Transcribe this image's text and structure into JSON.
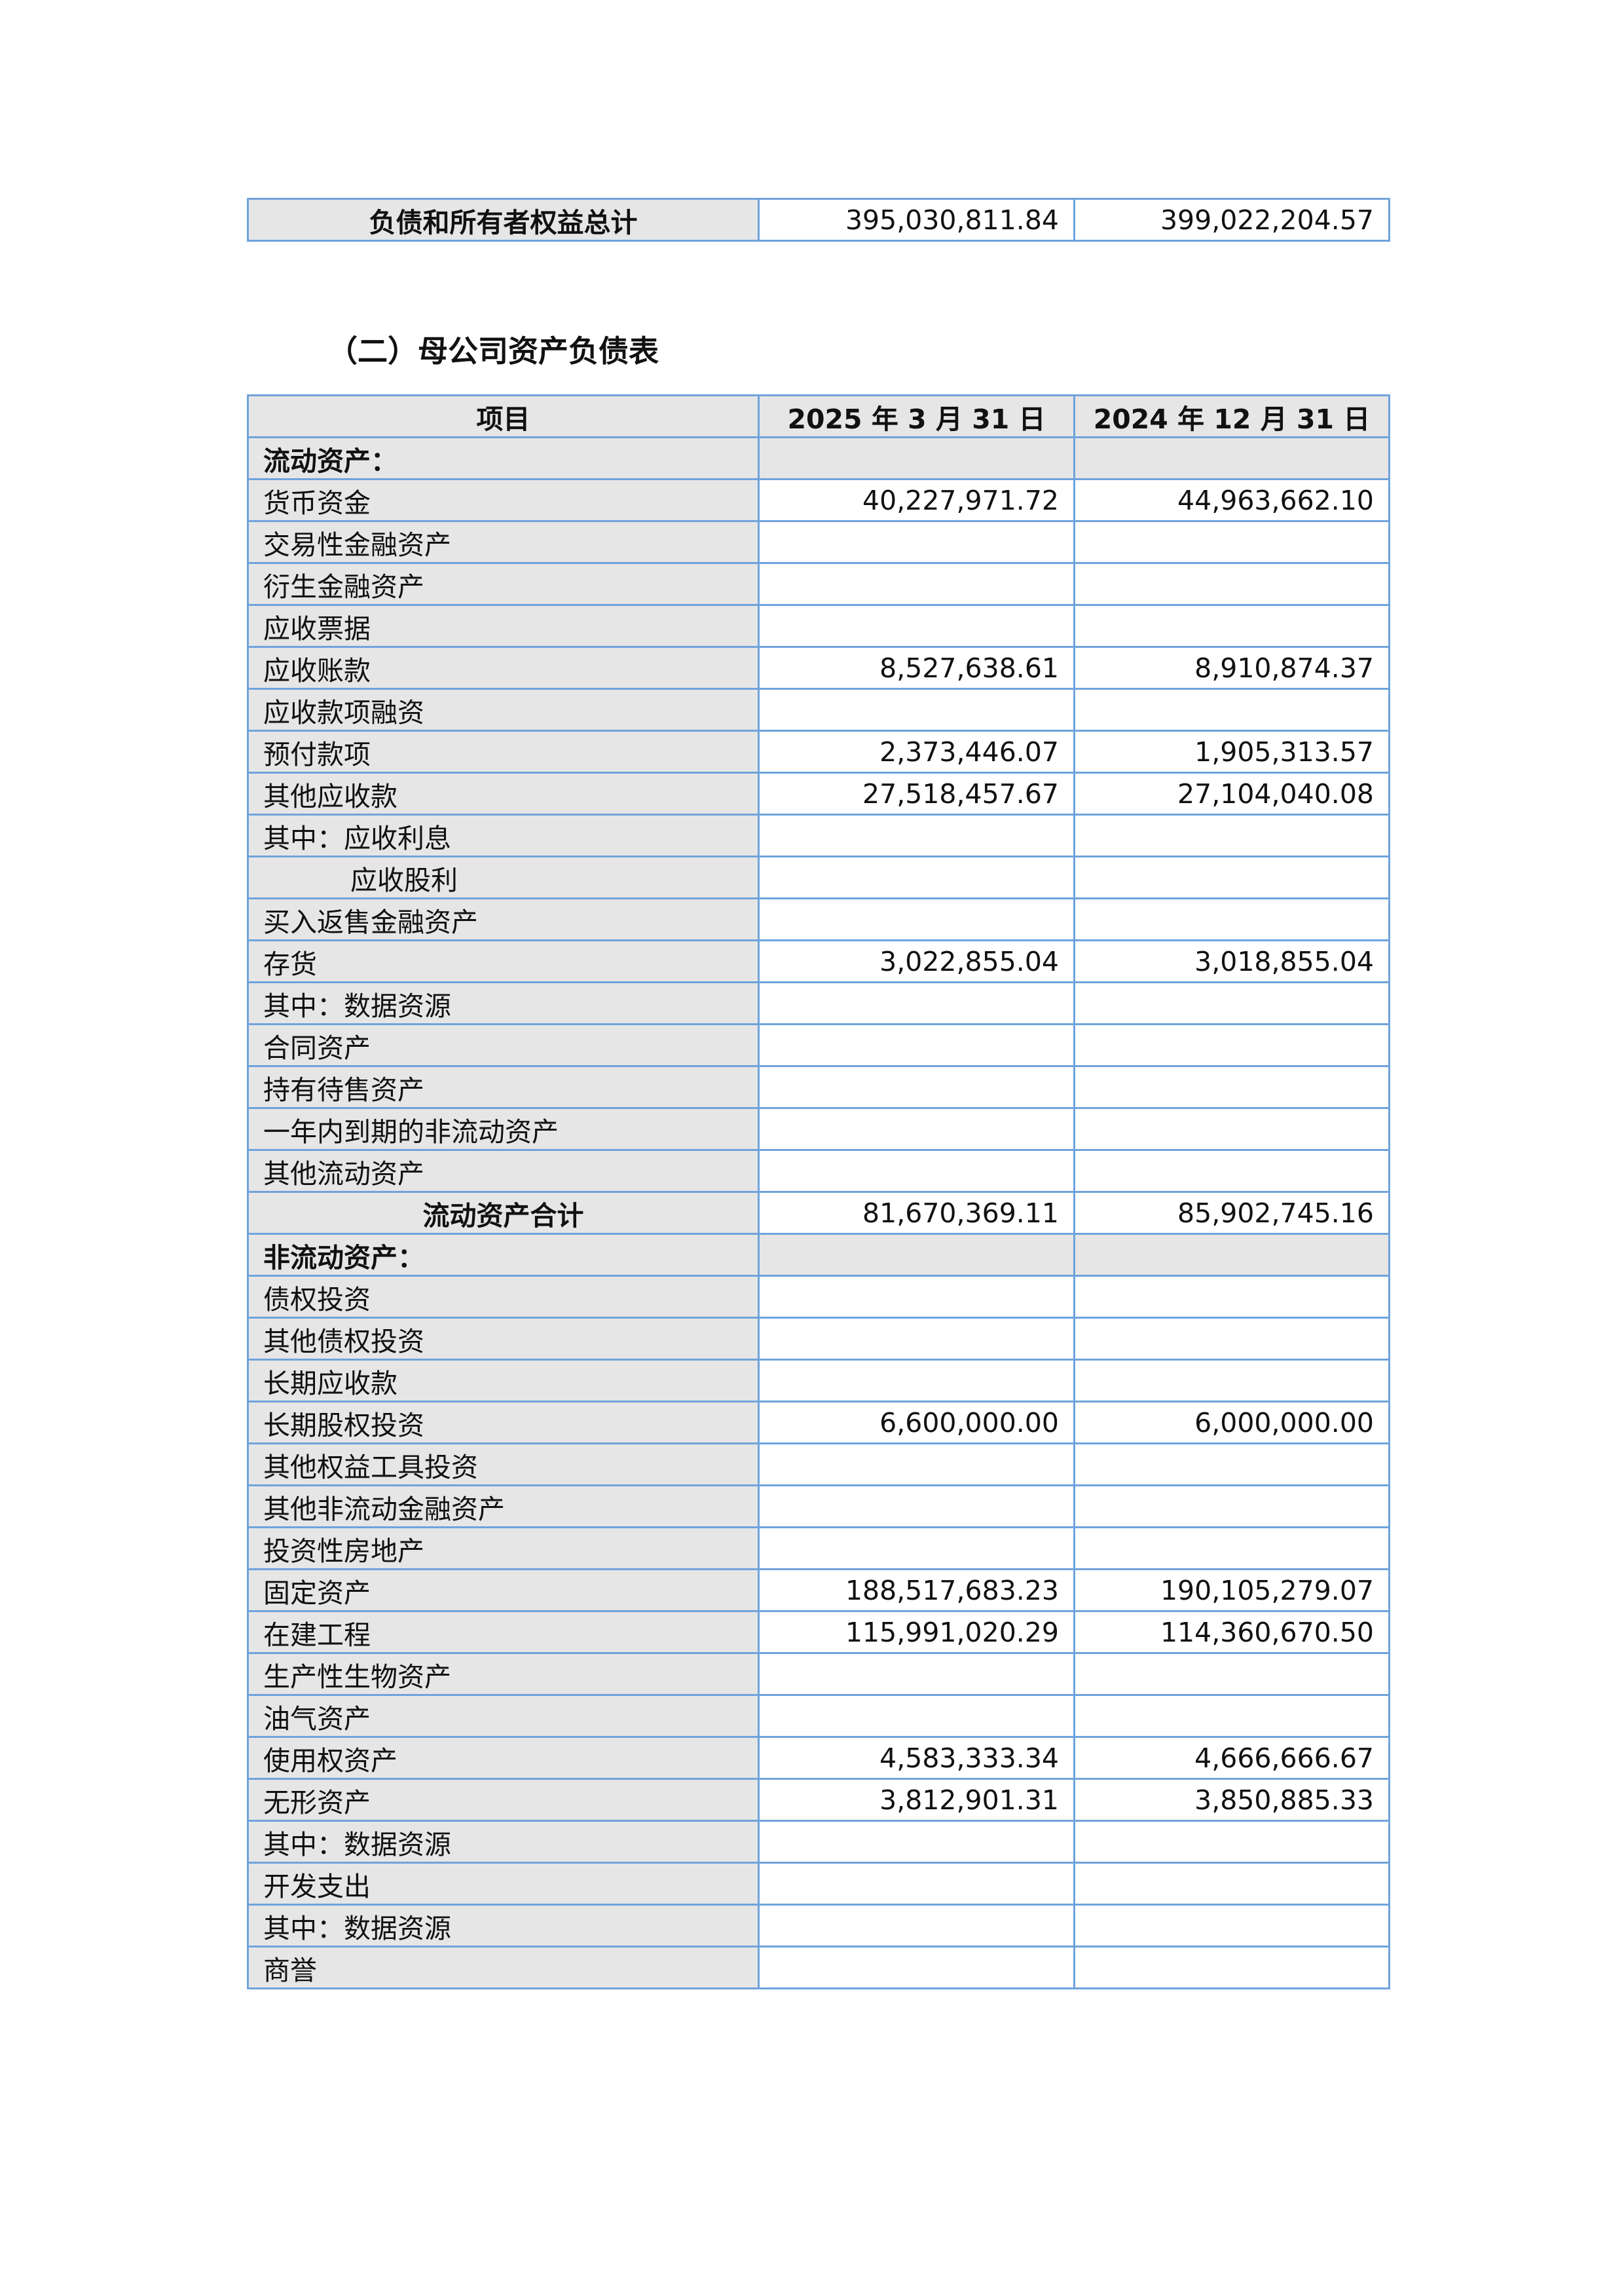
{
  "top_table": {
    "label": "负债和所有者权益总计",
    "v2025": "395,030,811.84",
    "v2024": "399,022,204.57"
  },
  "section_title": "（二）母公司资产负债表",
  "table": {
    "headers": [
      "项目",
      "2025 年 3 月 31 日",
      "2024 年 12 月 31 日"
    ],
    "rows": [
      {
        "label": "流动资产：",
        "v2025": "",
        "v2024": "",
        "style": "section"
      },
      {
        "label": "货币资金",
        "v2025": "40,227,971.72",
        "v2024": "44,963,662.10"
      },
      {
        "label": "交易性金融资产",
        "v2025": "",
        "v2024": ""
      },
      {
        "label": "衍生金融资产",
        "v2025": "",
        "v2024": ""
      },
      {
        "label": "应收票据",
        "v2025": "",
        "v2024": ""
      },
      {
        "label": "应收账款",
        "v2025": "8,527,638.61",
        "v2024": "8,910,874.37"
      },
      {
        "label": "应收款项融资",
        "v2025": "",
        "v2024": ""
      },
      {
        "label": "预付款项",
        "v2025": "2,373,446.07",
        "v2024": "1,905,313.57"
      },
      {
        "label": "其他应收款",
        "v2025": "27,518,457.67",
        "v2024": "27,104,040.08"
      },
      {
        "label": "其中：应收利息",
        "v2025": "",
        "v2024": ""
      },
      {
        "label": "应收股利",
        "v2025": "",
        "v2024": "",
        "style": "indent"
      },
      {
        "label": "买入返售金融资产",
        "v2025": "",
        "v2024": ""
      },
      {
        "label": "存货",
        "v2025": "3,022,855.04",
        "v2024": "3,018,855.04"
      },
      {
        "label": "其中：数据资源",
        "v2025": "",
        "v2024": ""
      },
      {
        "label": "合同资产",
        "v2025": "",
        "v2024": ""
      },
      {
        "label": "持有待售资产",
        "v2025": "",
        "v2024": ""
      },
      {
        "label": "一年内到期的非流动资产",
        "v2025": "",
        "v2024": ""
      },
      {
        "label": "其他流动资产",
        "v2025": "",
        "v2024": ""
      },
      {
        "label": "流动资产合计",
        "v2025": "81,670,369.11",
        "v2024": "85,902,745.16",
        "style": "total"
      },
      {
        "label": "非流动资产：",
        "v2025": "",
        "v2024": "",
        "style": "section"
      },
      {
        "label": "债权投资",
        "v2025": "",
        "v2024": ""
      },
      {
        "label": "其他债权投资",
        "v2025": "",
        "v2024": ""
      },
      {
        "label": "长期应收款",
        "v2025": "",
        "v2024": ""
      },
      {
        "label": "长期股权投资",
        "v2025": "6,600,000.00",
        "v2024": "6,000,000.00"
      },
      {
        "label": "其他权益工具投资",
        "v2025": "",
        "v2024": ""
      },
      {
        "label": "其他非流动金融资产",
        "v2025": "",
        "v2024": ""
      },
      {
        "label": "投资性房地产",
        "v2025": "",
        "v2024": ""
      },
      {
        "label": "固定资产",
        "v2025": "188,517,683.23",
        "v2024": "190,105,279.07"
      },
      {
        "label": "在建工程",
        "v2025": "115,991,020.29",
        "v2024": "114,360,670.50"
      },
      {
        "label": "生产性生物资产",
        "v2025": "",
        "v2024": ""
      },
      {
        "label": "油气资产",
        "v2025": "",
        "v2024": ""
      },
      {
        "label": "使用权资产",
        "v2025": "4,583,333.34",
        "v2024": "4,666,666.67"
      },
      {
        "label": "无形资产",
        "v2025": "3,812,901.31",
        "v2024": "3,850,885.33"
      },
      {
        "label": "其中：数据资源",
        "v2025": "",
        "v2024": ""
      },
      {
        "label": "开发支出",
        "v2025": "",
        "v2024": ""
      },
      {
        "label": "其中：数据资源",
        "v2025": "",
        "v2024": ""
      },
      {
        "label": "商誉",
        "v2025": "",
        "v2024": ""
      }
    ]
  }
}
